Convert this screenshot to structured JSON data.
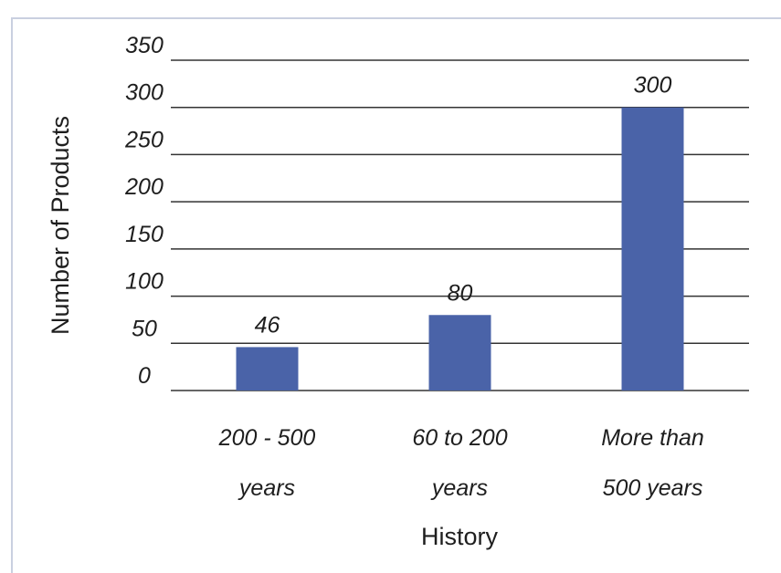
{
  "chart_data": {
    "type": "bar",
    "categories": [
      [
        "200 - 500",
        "years"
      ],
      [
        "60 to 200",
        "years"
      ],
      [
        "More than",
        "500 years"
      ]
    ],
    "values": [
      46,
      80,
      300
    ],
    "data_labels": [
      "46",
      "80",
      "300"
    ],
    "title": "",
    "xlabel": "History",
    "ylabel": "Number of Products",
    "ylim": [
      0,
      350
    ],
    "yticks": [
      0,
      50,
      100,
      150,
      200,
      250,
      300,
      350
    ],
    "grid": true,
    "legend": "none",
    "bar_color": "#4a63a8",
    "grid_color": "#333333"
  }
}
